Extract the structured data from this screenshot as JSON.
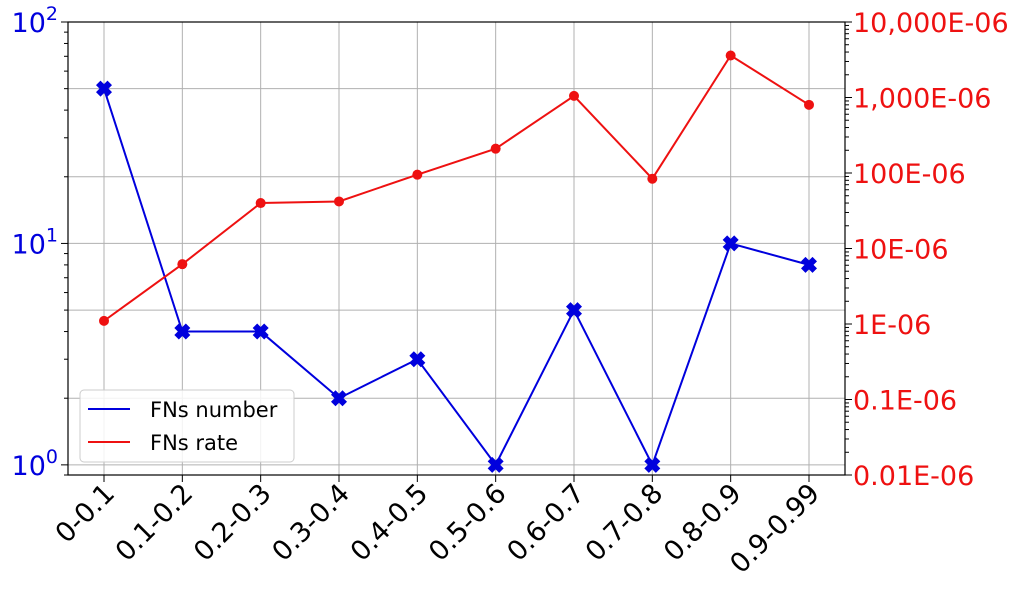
{
  "chart_data": {
    "type": "line",
    "title": "",
    "xlabel": "",
    "ylabel": "",
    "categories": [
      "0-0.1",
      "0.1-0.2",
      "0.2-0.3",
      "0.3-0.4",
      "0.4-0.5",
      "0.5-0.6",
      "0.6-0.7",
      "0.7-0.8",
      "0.8-0.9",
      "0.9-0.99"
    ],
    "grid": true,
    "legend_position": "lower-left",
    "left_axis": {
      "scale": "log",
      "range": [
        0.9,
        100
      ],
      "color": "#0000dd",
      "ticks": [
        {
          "value": 1,
          "base": "10",
          "exp": "0"
        },
        {
          "value": 10,
          "base": "10",
          "exp": "1"
        },
        {
          "value": 100,
          "base": "10",
          "exp": "2"
        }
      ]
    },
    "right_axis": {
      "scale": "log",
      "unit": "E-06",
      "range": [
        0.01,
        10000
      ],
      "color": "#ee1111",
      "ticks": [
        {
          "value": 0.01,
          "label": "0.01E-06"
        },
        {
          "value": 0.1,
          "label": "0.1E-06"
        },
        {
          "value": 1,
          "label": "1E-06"
        },
        {
          "value": 10,
          "label": "10E-06"
        },
        {
          "value": 100,
          "label": "100E-06"
        },
        {
          "value": 1000,
          "label": "1,000E-06"
        },
        {
          "value": 10000,
          "label": "10,000E-06"
        }
      ]
    },
    "series": [
      {
        "name": "FNs number",
        "axis": "left",
        "color": "#0000dd",
        "marker": "x-filled",
        "values": [
          50,
          4,
          4,
          2,
          3,
          1,
          5,
          1,
          10,
          8
        ]
      },
      {
        "name": "FNs rate",
        "axis": "right",
        "color": "#ee1111",
        "marker": "circle",
        "values": [
          1.1,
          6.2,
          40,
          42,
          95,
          210,
          1050,
          84,
          3600,
          800
        ]
      }
    ]
  }
}
